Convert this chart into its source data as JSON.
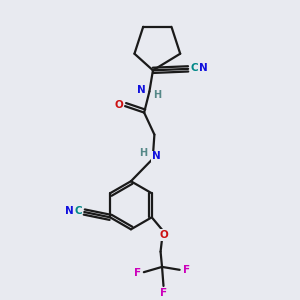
{
  "background_color": "#e8eaf0",
  "bond_color": "#1a1a1a",
  "atom_colors": {
    "N": "#1010dd",
    "O": "#cc1111",
    "C": "#008888",
    "F": "#cc00bb",
    "H": "#558888"
  },
  "figsize": [
    3.0,
    3.0
  ],
  "dpi": 100,
  "lw": 1.6,
  "fontsize": 7.5
}
